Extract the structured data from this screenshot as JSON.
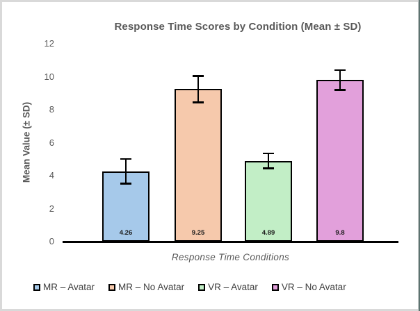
{
  "chart_data": {
    "type": "bar",
    "title": "Response Time Scores by Condition (Mean ± SD)",
    "xlabel": "Response Time Conditions",
    "ylabel": "Mean Value (± SD)",
    "ylim": [
      0,
      12
    ],
    "yticks": [
      0,
      2,
      4,
      6,
      8,
      10,
      12
    ],
    "grid": false,
    "legend_position": "bottom",
    "categories": [
      "MR – Avatar",
      "MR – No Avatar",
      "VR – Avatar",
      "VR – No Avatar"
    ],
    "values": [
      4.26,
      9.25,
      4.89,
      9.8
    ],
    "errors": [
      0.8,
      0.85,
      0.5,
      0.65
    ],
    "value_labels": [
      "4.26",
      "9.25",
      "4.89",
      "9.8"
    ],
    "bar_colors": [
      "#A6C9EA",
      "#F6C9AC",
      "#C2EEC6",
      "#E2A0DB"
    ],
    "bar_border_color": "#000000",
    "error_bar_color": "#000000"
  }
}
